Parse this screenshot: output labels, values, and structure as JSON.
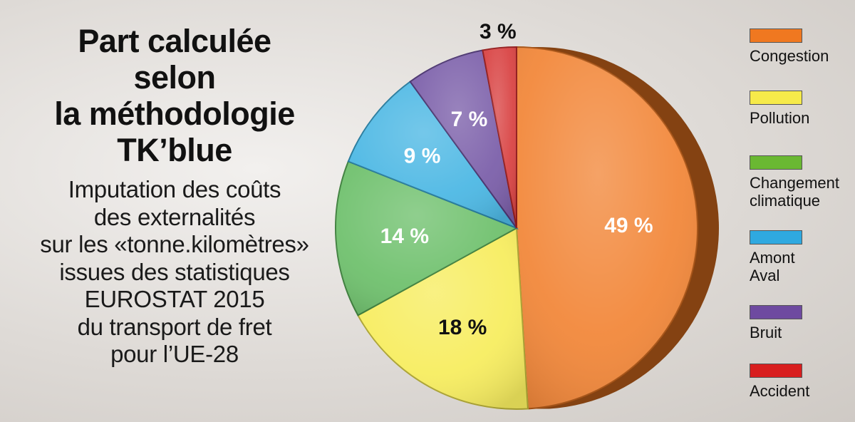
{
  "title_lines": [
    "Part calculée",
    "selon",
    "la méthodologie",
    "TK’blue"
  ],
  "subtitle_lines": [
    "Imputation des coûts",
    "des externalités",
    "sur les «tonne.kilomètres»",
    "issues des statistiques",
    "EUROSTAT 2015",
    "du transport de fret",
    "pour l’UE-28"
  ],
  "chart_data": {
    "type": "pie",
    "title": "Part calculée selon la méthodologie TK’blue",
    "subtitle": "Imputation des coûts des externalités sur les «tonne.kilomètres» issues des statistiques EUROSTAT 2015 du transport de fret pour l’UE-28",
    "legend_position": "right",
    "slices": [
      {
        "name": "Congestion",
        "value": 49,
        "label": "49 %",
        "color": "#f07820",
        "label_color": "#ffffff"
      },
      {
        "name": "Pollution",
        "value": 18,
        "label": "18 %",
        "color": "#f6ea4a",
        "label_color": "#111111"
      },
      {
        "name": "Changement climatique",
        "value": 14,
        "label": "14 %",
        "color": "#5cb85a",
        "label_color": "#ffffff"
      },
      {
        "name": "Amont Aval",
        "value": 9,
        "label": "9 %",
        "color": "#35aee0",
        "label_color": "#ffffff"
      },
      {
        "name": "Bruit",
        "value": 7,
        "label": "7 %",
        "color": "#6a4a9e",
        "label_color": "#ffffff"
      },
      {
        "name": "Accident",
        "value": 3,
        "label": "3 %",
        "color": "#d42a2a",
        "label_color": "#111111"
      }
    ]
  },
  "legend": {
    "items": [
      {
        "label": "Congestion",
        "color": "#f07820"
      },
      {
        "label": "Pollution",
        "color": "#f6ea4a"
      },
      {
        "label": "Changement\nclimatique",
        "color": "#6ab832"
      },
      {
        "label": "Amont\nAval",
        "color": "#2fa9e0"
      },
      {
        "label": "Bruit",
        "color": "#6e4aa0"
      },
      {
        "label": "Accident",
        "color": "#d81e1e"
      }
    ]
  }
}
